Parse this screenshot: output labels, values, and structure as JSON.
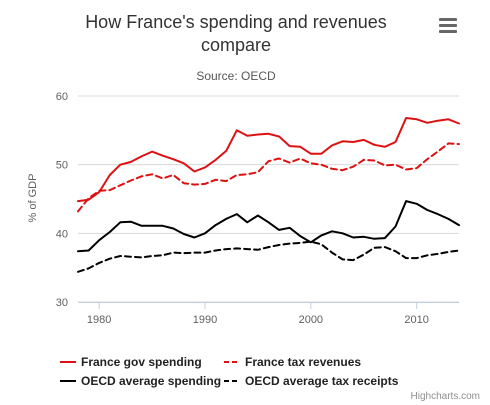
{
  "chart_data": {
    "type": "line",
    "title_lines": [
      "How France's spending and revenues",
      "compare"
    ],
    "subtitle": "Source: OECD",
    "xlabel": "",
    "ylabel": "% of GDP",
    "xlim": [
      1978,
      2014
    ],
    "ylim": [
      30,
      60
    ],
    "x_ticks": [
      1980,
      1990,
      2000,
      2010
    ],
    "y_ticks": [
      30,
      40,
      50,
      60
    ],
    "grid": "horizontal",
    "legend_position": "bottom",
    "series": [
      {
        "name": "France gov spending",
        "color": "#dd1111",
        "dash": "solid",
        "x": [
          1978,
          1979,
          1980,
          1981,
          1982,
          1983,
          1984,
          1985,
          1986,
          1987,
          1988,
          1989,
          1990,
          1991,
          1992,
          1993,
          1994,
          1995,
          1996,
          1997,
          1998,
          1999,
          2000,
          2001,
          2002,
          2003,
          2004,
          2005,
          2006,
          2007,
          2008,
          2009,
          2010,
          2011,
          2012,
          2013,
          2014
        ],
        "values": [
          44.7,
          44.9,
          46.0,
          48.5,
          50.0,
          50.4,
          51.2,
          51.9,
          51.3,
          50.8,
          50.2,
          49.0,
          49.6,
          50.7,
          52.0,
          55.0,
          54.2,
          54.4,
          54.5,
          54.1,
          52.7,
          52.6,
          51.6,
          51.6,
          52.8,
          53.4,
          53.3,
          53.6,
          52.9,
          52.6,
          53.3,
          56.8,
          56.6,
          56.1,
          56.4,
          56.6,
          56.0
        ]
      },
      {
        "name": "France tax revenues",
        "color": "#dd1111",
        "dash": "dashed",
        "x": [
          1978,
          1979,
          1980,
          1981,
          1982,
          1983,
          1984,
          1985,
          1986,
          1987,
          1988,
          1989,
          1990,
          1991,
          1992,
          1993,
          1994,
          1995,
          1996,
          1997,
          1998,
          1999,
          2000,
          2001,
          2002,
          2003,
          2004,
          2005,
          2006,
          2007,
          2008,
          2009,
          2010,
          2011,
          2012,
          2013,
          2014
        ],
        "values": [
          43.2,
          45.1,
          46.2,
          46.3,
          47.0,
          47.7,
          48.3,
          48.6,
          48.0,
          48.5,
          47.3,
          47.1,
          47.2,
          47.8,
          47.6,
          48.5,
          48.6,
          48.9,
          50.5,
          50.9,
          50.3,
          50.9,
          50.2,
          50.0,
          49.4,
          49.2,
          49.7,
          50.7,
          50.6,
          49.9,
          50.0,
          49.3,
          49.5,
          50.8,
          51.9,
          53.1,
          53.0
        ]
      },
      {
        "name": "OECD average spending",
        "color": "#000000",
        "dash": "solid",
        "x": [
          1978,
          1979,
          1980,
          1981,
          1982,
          1983,
          1984,
          1985,
          1986,
          1987,
          1988,
          1989,
          1990,
          1991,
          1992,
          1993,
          1994,
          1995,
          1996,
          1997,
          1998,
          1999,
          2000,
          2001,
          2002,
          2003,
          2004,
          2005,
          2006,
          2007,
          2008,
          2009,
          2010,
          2011,
          2012,
          2013,
          2014
        ],
        "values": [
          37.4,
          37.5,
          39.0,
          40.2,
          41.6,
          41.7,
          41.1,
          41.1,
          41.1,
          40.7,
          39.9,
          39.4,
          40.0,
          41.2,
          42.1,
          42.8,
          41.6,
          42.6,
          41.6,
          40.5,
          40.8,
          39.6,
          38.7,
          39.7,
          40.3,
          40.0,
          39.4,
          39.5,
          39.2,
          39.3,
          41.0,
          44.7,
          44.3,
          43.4,
          42.8,
          42.1,
          41.2
        ]
      },
      {
        "name": "OECD average tax receipts",
        "color": "#000000",
        "dash": "dashed",
        "x": [
          1978,
          1979,
          1980,
          1981,
          1982,
          1983,
          1984,
          1985,
          1986,
          1987,
          1988,
          1989,
          1990,
          1991,
          1992,
          1993,
          1994,
          1995,
          1996,
          1997,
          1998,
          1999,
          2000,
          2001,
          2002,
          2003,
          2004,
          2005,
          2006,
          2007,
          2008,
          2009,
          2010,
          2011,
          2012,
          2013,
          2014
        ],
        "values": [
          34.4,
          34.9,
          35.7,
          36.3,
          36.7,
          36.6,
          36.5,
          36.7,
          36.8,
          37.2,
          37.1,
          37.2,
          37.2,
          37.5,
          37.7,
          37.8,
          37.7,
          37.6,
          38.0,
          38.3,
          38.5,
          38.6,
          38.8,
          38.4,
          37.2,
          36.2,
          36.1,
          36.9,
          37.9,
          38.0,
          37.4,
          36.4,
          36.4,
          36.8,
          37.0,
          37.3,
          37.5
        ]
      }
    ]
  },
  "credit": "Highcharts.com",
  "menu_icon": "hamburger-menu-icon"
}
